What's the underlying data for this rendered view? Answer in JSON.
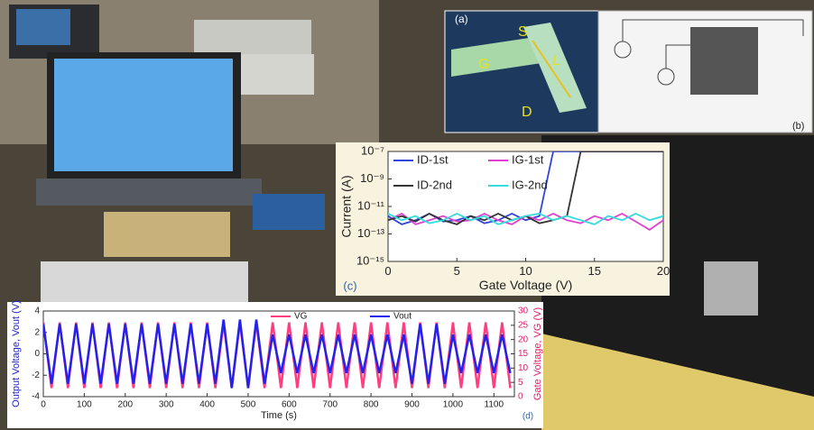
{
  "chart_data": [
    {
      "type": "line",
      "panel_label": "(c)",
      "xlabel": "Gate Voltage  (V)",
      "ylabel": "Current  (A)",
      "log_y": true,
      "x": [
        0,
        1,
        2,
        3,
        4,
        5,
        6,
        7,
        8,
        9,
        10,
        11,
        12,
        13,
        14,
        15,
        16,
        17,
        18,
        19,
        20
      ],
      "xlim": [
        0,
        20
      ],
      "xticks": [
        0,
        5,
        10,
        15,
        20
      ],
      "ylim": [
        1e-15,
        1e-07
      ],
      "yticks": [
        {
          "value": 1e-07,
          "label": "10⁻⁷"
        },
        {
          "value": 1e-09,
          "label": "10⁻⁹"
        },
        {
          "value": 1e-11,
          "label": "10⁻¹¹"
        },
        {
          "value": 1e-13,
          "label": "10⁻¹³"
        },
        {
          "value": 1e-15,
          "label": "10⁻¹⁵"
        }
      ],
      "series": [
        {
          "name": "ID-1st",
          "color": "#3344dd",
          "values": [
            2e-12,
            5e-13,
            1e-12,
            3e-12,
            8e-13,
            1e-12,
            2e-12,
            6e-13,
            1e-12,
            3e-12,
            1e-12,
            2e-12,
            1e-07,
            1e-07,
            1e-07,
            1e-07,
            1e-07,
            1e-07,
            1e-07,
            1e-07,
            1e-07
          ]
        },
        {
          "name": "IG-1st",
          "color": "#e040d0",
          "values": [
            1e-12,
            3e-12,
            5e-13,
            1e-12,
            2e-12,
            8e-13,
            1e-12,
            3e-12,
            1e-12,
            5e-13,
            2e-12,
            1e-12,
            3e-12,
            1e-12,
            6e-13,
            2e-12,
            1e-12,
            3e-12,
            8e-13,
            2e-13,
            1e-12
          ]
        },
        {
          "name": "ID-2nd",
          "color": "#333333",
          "values": [
            1e-12,
            2e-12,
            8e-13,
            3e-12,
            1e-12,
            5e-13,
            2e-12,
            1e-12,
            3e-12,
            1e-12,
            2e-12,
            6e-13,
            1e-12,
            2e-12,
            1e-07,
            1e-07,
            1e-07,
            1e-07,
            1e-07,
            1e-07,
            1e-07
          ]
        },
        {
          "name": "IG-2nd",
          "color": "#33dddd",
          "values": [
            3e-12,
            1e-12,
            2e-12,
            6e-13,
            1e-12,
            3e-12,
            1e-12,
            2e-12,
            5e-13,
            1e-12,
            2e-12,
            3e-12,
            1e-12,
            2e-12,
            1e-12,
            5e-13,
            2e-12,
            1e-12,
            3e-12,
            1e-12,
            2e-12
          ]
        }
      ]
    },
    {
      "type": "line",
      "panel_label": "(d)",
      "xlabel": "Time (s)",
      "ylabel": "Output Voltage, Vout (V)",
      "y2label": "Gate Voltage, VG (V)",
      "x": [
        0,
        20,
        40,
        60,
        80,
        100,
        120,
        140,
        160,
        180,
        200,
        220,
        240,
        260,
        280,
        300,
        320,
        340,
        360,
        380,
        400,
        420,
        440,
        460,
        480,
        500,
        520,
        540,
        560,
        580,
        600,
        620,
        640,
        660,
        680,
        700,
        720,
        740,
        760,
        780,
        800,
        820,
        840,
        860,
        880,
        900,
        920,
        940,
        960,
        980,
        1000,
        1020,
        1040,
        1060,
        1080,
        1100,
        1120,
        1140
      ],
      "xlim": [
        0,
        1150
      ],
      "xticks": [
        0,
        100,
        200,
        300,
        400,
        500,
        600,
        700,
        800,
        900,
        1000,
        1100
      ],
      "ylim": [
        -4,
        4
      ],
      "yticks": [
        -4,
        -2,
        0,
        2,
        4
      ],
      "y2lim": [
        0,
        30
      ],
      "y2ticks": [
        0,
        5,
        10,
        15,
        20,
        25,
        30
      ],
      "series": [
        {
          "name": "VG",
          "color": "#ff3d7f",
          "axis": "y2",
          "values": [
            26,
            3,
            26,
            3,
            26,
            3,
            26,
            3,
            26,
            3,
            26,
            3,
            26,
            3,
            26,
            3,
            26,
            3,
            26,
            3,
            26,
            3,
            26,
            3,
            26,
            3,
            26,
            3,
            26,
            3,
            26,
            3,
            26,
            3,
            26,
            3,
            26,
            3,
            26,
            3,
            26,
            3,
            26,
            3,
            26,
            3,
            26,
            3,
            26,
            3,
            26,
            3,
            26,
            3,
            26,
            3,
            26,
            3
          ]
        },
        {
          "name": "Vout",
          "color": "#2222ee",
          "values": [
            2.8,
            -2.8,
            2.8,
            -2.8,
            2.8,
            -2.8,
            2.8,
            -2.8,
            2.8,
            -2.8,
            2.8,
            -2.8,
            2.8,
            -2.8,
            2.8,
            -2.8,
            2.8,
            -2.8,
            2.8,
            -2.8,
            2.8,
            -2.8,
            3.2,
            -3.2,
            3.2,
            -3.2,
            3.2,
            -2.8,
            1.8,
            -1.8,
            1.8,
            -1.8,
            1.8,
            -1.8,
            1.8,
            -1.8,
            1.8,
            -1.8,
            1.8,
            -1.8,
            1.8,
            -1.8,
            1.8,
            -1.8,
            1.8,
            -2.8,
            2.8,
            -2.8,
            2.8,
            -2.8,
            1.8,
            -1.8,
            1.8,
            -1.8,
            1.8,
            -1.8,
            1.8,
            -1.8
          ]
        }
      ]
    }
  ],
  "panels": {
    "a": {
      "label": "(a)",
      "source": "S",
      "gate": "G",
      "drain": "D",
      "length": "L"
    },
    "b": {
      "label": "(b)"
    }
  }
}
